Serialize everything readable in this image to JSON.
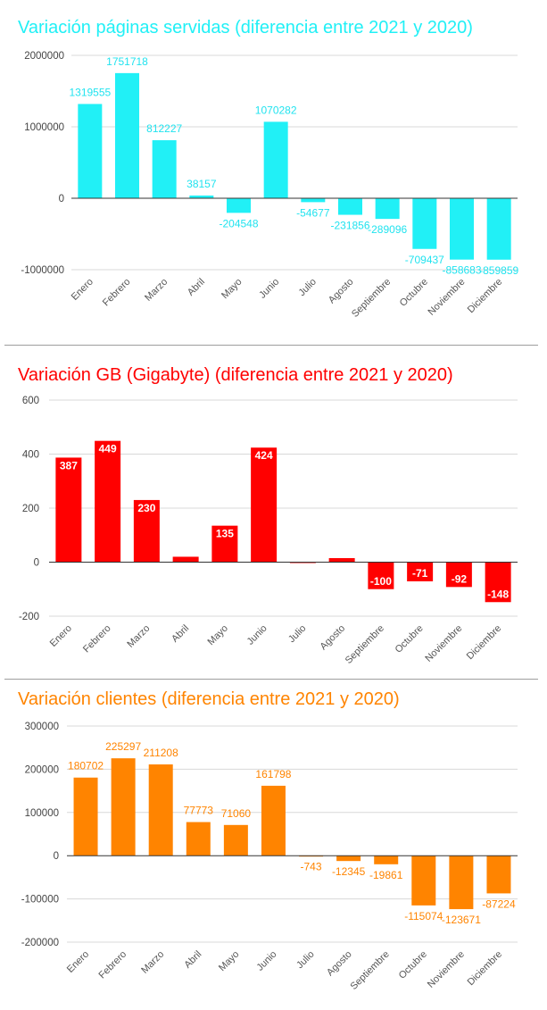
{
  "chart_data": [
    {
      "type": "bar",
      "title": "Variación páginas servidas (diferencia entre 2021 y 2020)",
      "color": "#21f0f6",
      "label_color": "#21e3ef",
      "labels_inside": false,
      "categories": [
        "Enero",
        "Febrero",
        "Marzo",
        "Abril",
        "Mayo",
        "Junio",
        "Julio",
        "Agosto",
        "Septiembre",
        "Octubre",
        "Noviembre",
        "Diciembre"
      ],
      "values": [
        1319555,
        1751718,
        812227,
        38157,
        -204548,
        1070282,
        -54677,
        -231856,
        -289096,
        -709437,
        -858683,
        -859859
      ],
      "data_labels": [
        "1319555",
        "1751718",
        "812227",
        "38157",
        "-204548",
        "1070282",
        "-54677",
        "-231856",
        "-289096",
        "-709437",
        "-858683",
        "-859859"
      ],
      "yticks": [
        2000000,
        1000000,
        0,
        -1000000
      ],
      "ytick_labels": [
        "2000000",
        "1000000",
        "0",
        "-1000000"
      ],
      "ylim": [
        -1000000,
        2000000
      ],
      "xlabel": "",
      "ylabel": ""
    },
    {
      "type": "bar",
      "title": "Variación GB (Gigabyte) (diferencia entre 2021 y 2020)",
      "color": "#ff0000",
      "label_color": "#ffffff",
      "labels_inside": true,
      "categories": [
        "Enero",
        "Febrero",
        "Marzo",
        "Abril",
        "Mayo",
        "Junio",
        "Julio",
        "Agosto",
        "Septiembre",
        "Octubre",
        "Noviembre",
        "Diciembre"
      ],
      "values": [
        387,
        449,
        230,
        20,
        135,
        424,
        -2,
        15,
        -100,
        -71,
        -92,
        -148
      ],
      "data_labels": [
        "387",
        "449",
        "230",
        "",
        "135",
        "424",
        "",
        "",
        "-100",
        "-71",
        "-92",
        "-148"
      ],
      "yticks": [
        600,
        400,
        200,
        0,
        -200
      ],
      "ytick_labels": [
        "600",
        "400",
        "200",
        "0",
        "-200"
      ],
      "ylim": [
        -200,
        600
      ],
      "xlabel": "",
      "ylabel": ""
    },
    {
      "type": "bar",
      "title": "Variación clientes (diferencia entre 2021 y 2020)",
      "color": "#ff8400",
      "label_color": "#ff8400",
      "labels_inside": false,
      "categories": [
        "Enero",
        "Febrero",
        "Marzo",
        "Abril",
        "Mayo",
        "Junio",
        "Julio",
        "Agosto",
        "Septiembre",
        "Octubre",
        "Noviembre",
        "Diciembre"
      ],
      "values": [
        180702,
        225297,
        211208,
        77773,
        71060,
        161798,
        -743,
        -12345,
        -19861,
        -115074,
        -123671,
        -87224
      ],
      "data_labels": [
        "180702",
        "225297",
        "211208",
        "77773",
        "71060",
        "161798",
        "-743",
        "-12345",
        "-19861",
        "-115074",
        "-123671",
        "-87224"
      ],
      "yticks": [
        300000,
        200000,
        100000,
        0,
        -100000,
        -200000
      ],
      "ytick_labels": [
        "300000",
        "200000",
        "100000",
        "0",
        "-100000",
        "-200000"
      ],
      "ylim": [
        -200000,
        300000
      ],
      "xlabel": "",
      "ylabel": ""
    }
  ]
}
